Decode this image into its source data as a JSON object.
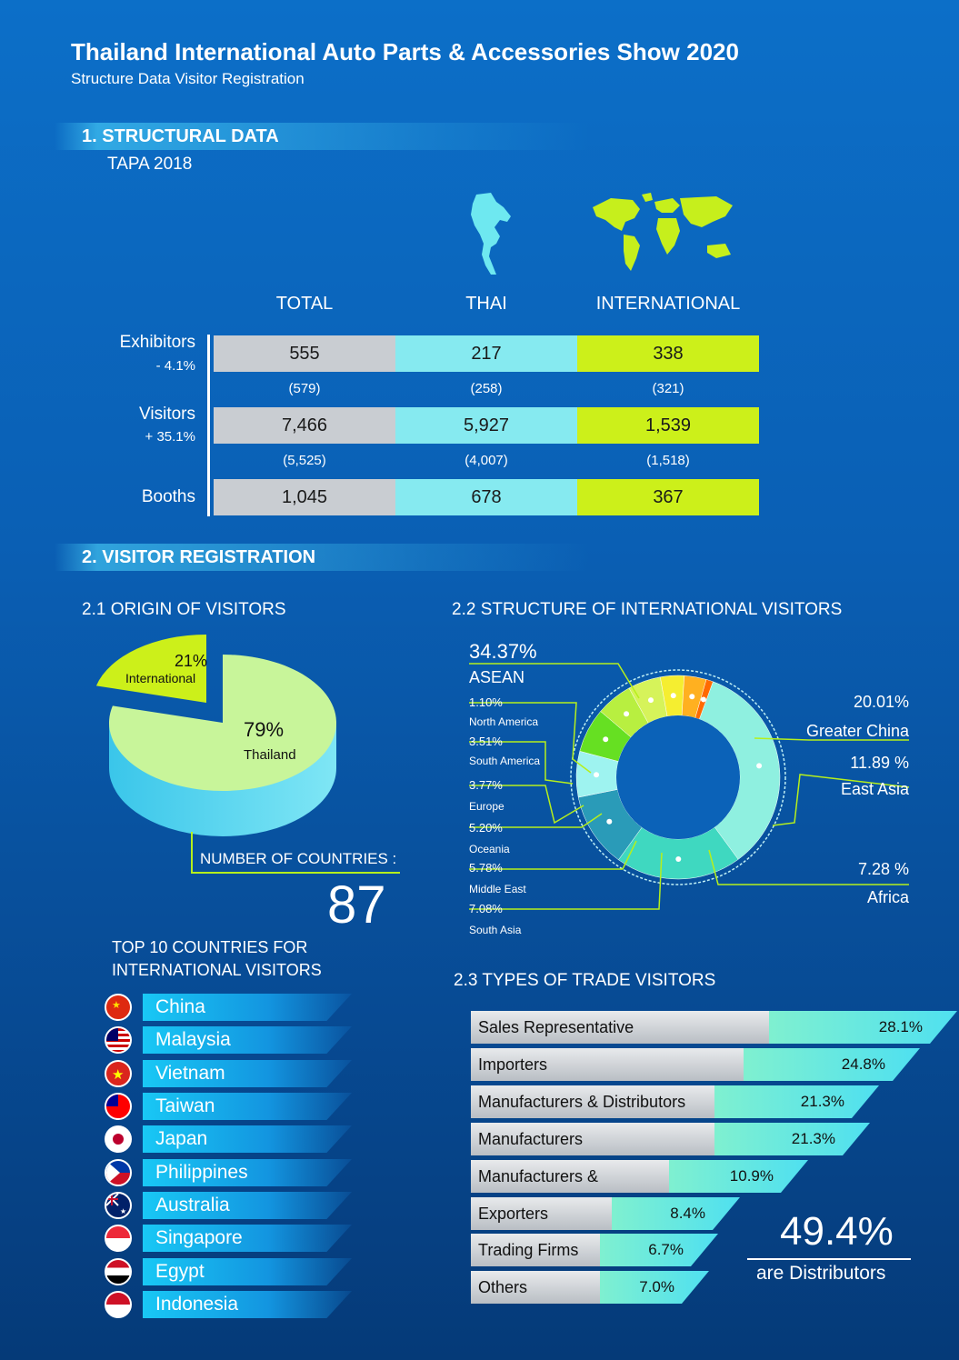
{
  "header": {
    "title": "Thailand International Auto Parts & Accessories Show 2020",
    "subtitle": "Structure Data Visitor Registration"
  },
  "section1": {
    "heading": "1. STRUCTURAL DATA",
    "subheading": "TAPA 2018",
    "columns": [
      "TOTAL",
      "THAI",
      "INTERNATIONAL"
    ],
    "rows": [
      {
        "label": "Exhibitors",
        "delta": "- 4.1%",
        "values": [
          "555",
          "217",
          "338"
        ],
        "prev": [
          "(579)",
          "(258)",
          "(321)"
        ]
      },
      {
        "label": "Visitors",
        "delta": "+ 35.1%",
        "values": [
          "7,466",
          "5,927",
          "1,539"
        ],
        "prev": [
          "(5,525)",
          "(4,007)",
          "(1,518)"
        ]
      },
      {
        "label": "Booths",
        "delta": "",
        "values": [
          "1,045",
          "678",
          "367"
        ],
        "prev": []
      }
    ],
    "colors": {
      "total": "#c9cdd2",
      "thai": "#86eaf0",
      "international": "#ccf01a"
    }
  },
  "section2": {
    "heading": "2. VISITOR REGISTRATION",
    "origin_heading": "2.1 ORIGIN OF VISITORS",
    "structure_heading": "2.2  STRUCTURE OF INTERNATIONAL VISITORS",
    "types_heading": "2.3 TYPES OF TRADE VISITORS",
    "countries_label": "NUMBER OF COUNTRIES :",
    "countries_value": "87",
    "top10_heading_line1": "TOP 10 COUNTRIES FOR",
    "top10_heading_line2": "INTERNATIONAL VISITORS",
    "top10": [
      "China",
      "Malaysia",
      "Vietnam",
      "Taiwan",
      "Japan",
      "Philippines",
      "Australia",
      "Singapore",
      "Egypt",
      "Indonesia"
    ],
    "distributors_value": "49.4%",
    "distributors_label": "are Distributors"
  },
  "chart_data": [
    {
      "type": "pie",
      "categories": [
        "Thailand",
        "International"
      ],
      "values": [
        79,
        21
      ],
      "labels": [
        "79%",
        "21%"
      ],
      "colors": [
        "#c8f59a",
        "#ccf01a"
      ]
    },
    {
      "type": "pie",
      "categories": [
        "ASEAN",
        "Greater China",
        "East Asia",
        "Africa",
        "South Asia",
        "Middle East",
        "Oceania",
        "Europe",
        "South America",
        "North America"
      ],
      "values": [
        34.37,
        20.01,
        11.89,
        7.28,
        7.08,
        5.78,
        5.2,
        3.77,
        3.51,
        1.1
      ],
      "labels": [
        "34.37%",
        "20.01%",
        "11.89 %",
        "7.28 %",
        "7.08%",
        "5.78%",
        "5.20%",
        "3.77%",
        "3.51%",
        "1.10%"
      ],
      "colors": [
        "#8ff0e0",
        "#3fd8c0",
        "#2a9bb8",
        "#9ef3f0",
        "#66e022",
        "#b8ef40",
        "#d6f35a",
        "#f5ee30",
        "#ffb020",
        "#ff6a00"
      ]
    },
    {
      "type": "bar",
      "categories": [
        "Sales Representative",
        "Importers",
        "Manufacturers & Distributors",
        "Manufacturers",
        "Manufacturers & Exporters",
        "Exporters",
        "Trading Firms",
        "Others"
      ],
      "values": [
        28.1,
        24.8,
        21.3,
        21.3,
        10.9,
        8.4,
        6.7,
        7.0
      ],
      "labels": [
        "28.1%",
        "24.8%",
        "21.3%",
        "21.3%",
        "10.9%",
        "8.4%",
        "6.7%",
        "7.0%"
      ]
    }
  ]
}
